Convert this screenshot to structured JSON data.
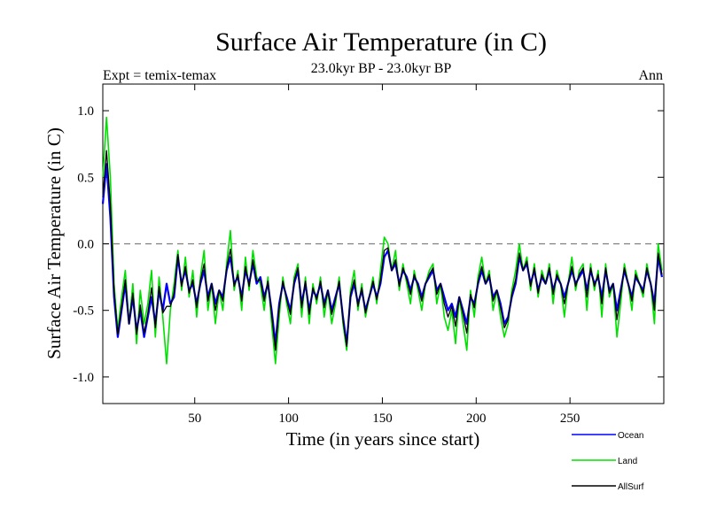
{
  "chart_data": {
    "type": "line",
    "title": "Surface Air Temperature (in C)",
    "subtitle": "23.0kyr BP - 23.0kyr BP",
    "left_note": "Expt = temix-temax",
    "right_note": "Ann",
    "xlabel": "Time (in years since start)",
    "ylabel": "Surface Air Temperature (in C)",
    "xlim": [
      1,
      300
    ],
    "ylim": [
      -1.2,
      1.2
    ],
    "x_ticks": [
      50,
      100,
      150,
      200,
      250
    ],
    "x_tick_labels": [
      "50",
      "100",
      "150",
      "200",
      "250"
    ],
    "y_ticks": [
      -1.0,
      -0.5,
      0.0,
      0.5,
      1.0
    ],
    "y_tick_labels": [
      "-1.0",
      "-0.5",
      "0.0",
      "0.5",
      "1.0"
    ],
    "reference_line": {
      "y": 0.0,
      "style": "dashed"
    },
    "x": [
      1,
      3,
      5,
      7,
      9,
      11,
      13,
      15,
      17,
      19,
      21,
      23,
      25,
      27,
      29,
      31,
      33,
      35,
      37,
      39,
      41,
      43,
      45,
      47,
      49,
      51,
      53,
      55,
      57,
      59,
      61,
      63,
      65,
      67,
      69,
      71,
      73,
      75,
      77,
      79,
      81,
      83,
      85,
      87,
      89,
      91,
      93,
      95,
      97,
      99,
      101,
      103,
      105,
      107,
      109,
      111,
      113,
      115,
      117,
      119,
      121,
      123,
      125,
      127,
      129,
      131,
      133,
      135,
      137,
      139,
      141,
      143,
      145,
      147,
      149,
      151,
      153,
      155,
      157,
      159,
      161,
      163,
      165,
      167,
      169,
      171,
      173,
      175,
      177,
      179,
      181,
      183,
      185,
      187,
      189,
      191,
      193,
      195,
      197,
      199,
      201,
      203,
      205,
      207,
      209,
      211,
      213,
      215,
      217,
      219,
      221,
      223,
      225,
      227,
      229,
      231,
      233,
      235,
      237,
      239,
      241,
      243,
      245,
      247,
      249,
      251,
      253,
      255,
      257,
      259,
      261,
      263,
      265,
      267,
      269,
      271,
      273,
      275,
      277,
      279,
      281,
      283,
      285,
      287,
      289,
      291,
      293,
      295,
      297,
      299
    ],
    "series": [
      {
        "name": "Ocean",
        "color": "#0000ff",
        "values": [
          0.3,
          0.6,
          0.2,
          -0.4,
          -0.7,
          -0.5,
          -0.3,
          -0.6,
          -0.4,
          -0.65,
          -0.5,
          -0.7,
          -0.55,
          -0.4,
          -0.6,
          -0.35,
          -0.5,
          -0.3,
          -0.45,
          -0.4,
          -0.1,
          -0.3,
          -0.2,
          -0.35,
          -0.3,
          -0.45,
          -0.3,
          -0.2,
          -0.4,
          -0.3,
          -0.45,
          -0.35,
          -0.4,
          -0.2,
          -0.1,
          -0.3,
          -0.25,
          -0.4,
          -0.2,
          -0.3,
          -0.15,
          -0.3,
          -0.25,
          -0.4,
          -0.3,
          -0.5,
          -0.75,
          -0.45,
          -0.3,
          -0.4,
          -0.5,
          -0.3,
          -0.2,
          -0.45,
          -0.3,
          -0.5,
          -0.35,
          -0.4,
          -0.3,
          -0.45,
          -0.35,
          -0.5,
          -0.4,
          -0.3,
          -0.55,
          -0.75,
          -0.4,
          -0.3,
          -0.45,
          -0.35,
          -0.5,
          -0.4,
          -0.3,
          -0.4,
          -0.3,
          -0.1,
          -0.05,
          -0.2,
          -0.15,
          -0.3,
          -0.2,
          -0.25,
          -0.35,
          -0.25,
          -0.3,
          -0.4,
          -0.3,
          -0.25,
          -0.2,
          -0.35,
          -0.3,
          -0.4,
          -0.5,
          -0.45,
          -0.55,
          -0.4,
          -0.5,
          -0.6,
          -0.4,
          -0.45,
          -0.3,
          -0.2,
          -0.3,
          -0.25,
          -0.4,
          -0.35,
          -0.45,
          -0.6,
          -0.55,
          -0.4,
          -0.3,
          -0.1,
          -0.2,
          -0.15,
          -0.3,
          -0.2,
          -0.35,
          -0.25,
          -0.3,
          -0.2,
          -0.35,
          -0.25,
          -0.3,
          -0.4,
          -0.3,
          -0.2,
          -0.3,
          -0.25,
          -0.2,
          -0.35,
          -0.2,
          -0.3,
          -0.25,
          -0.4,
          -0.2,
          -0.35,
          -0.3,
          -0.5,
          -0.35,
          -0.2,
          -0.3,
          -0.4,
          -0.25,
          -0.3,
          -0.35,
          -0.2,
          -0.3,
          -0.45,
          -0.1,
          -0.25
        ]
      },
      {
        "name": "Land",
        "color": "#00e000",
        "values": [
          0.5,
          0.95,
          0.5,
          -0.3,
          -0.65,
          -0.4,
          -0.2,
          -0.6,
          -0.3,
          -0.75,
          -0.35,
          -0.6,
          -0.45,
          -0.2,
          -0.7,
          -0.25,
          -0.55,
          -0.9,
          -0.5,
          -0.3,
          -0.05,
          -0.35,
          -0.1,
          -0.4,
          -0.2,
          -0.55,
          -0.25,
          -0.05,
          -0.5,
          -0.3,
          -0.6,
          -0.35,
          -0.5,
          -0.15,
          0.1,
          -0.35,
          -0.2,
          -0.5,
          -0.1,
          -0.35,
          -0.05,
          -0.25,
          -0.3,
          -0.5,
          -0.25,
          -0.6,
          -0.9,
          -0.55,
          -0.25,
          -0.45,
          -0.6,
          -0.25,
          -0.15,
          -0.55,
          -0.25,
          -0.6,
          -0.3,
          -0.45,
          -0.25,
          -0.55,
          -0.35,
          -0.6,
          -0.45,
          -0.25,
          -0.6,
          -0.8,
          -0.35,
          -0.2,
          -0.5,
          -0.3,
          -0.55,
          -0.4,
          -0.25,
          -0.45,
          -0.2,
          0.05,
          0.0,
          -0.2,
          -0.05,
          -0.35,
          -0.15,
          -0.3,
          -0.45,
          -0.2,
          -0.35,
          -0.5,
          -0.3,
          -0.2,
          -0.15,
          -0.45,
          -0.3,
          -0.55,
          -0.65,
          -0.5,
          -0.75,
          -0.4,
          -0.6,
          -0.8,
          -0.35,
          -0.55,
          -0.25,
          -0.1,
          -0.3,
          -0.2,
          -0.5,
          -0.35,
          -0.55,
          -0.7,
          -0.6,
          -0.35,
          -0.2,
          0.0,
          -0.2,
          -0.1,
          -0.35,
          -0.15,
          -0.4,
          -0.2,
          -0.3,
          -0.15,
          -0.45,
          -0.2,
          -0.3,
          -0.55,
          -0.3,
          -0.1,
          -0.35,
          -0.2,
          -0.15,
          -0.5,
          -0.15,
          -0.35,
          -0.2,
          -0.55,
          -0.15,
          -0.4,
          -0.3,
          -0.7,
          -0.45,
          -0.15,
          -0.3,
          -0.5,
          -0.2,
          -0.3,
          -0.4,
          -0.15,
          -0.3,
          -0.6,
          0.0,
          -0.2
        ]
      },
      {
        "name": "AllSurf",
        "color": "#000000",
        "values": [
          0.35,
          0.7,
          0.3,
          -0.35,
          -0.68,
          -0.47,
          -0.27,
          -0.6,
          -0.37,
          -0.68,
          -0.46,
          -0.67,
          -0.52,
          -0.33,
          -0.63,
          -0.32,
          -0.52,
          -0.47,
          -0.47,
          -0.37,
          -0.08,
          -0.32,
          -0.17,
          -0.37,
          -0.27,
          -0.48,
          -0.28,
          -0.15,
          -0.43,
          -0.3,
          -0.5,
          -0.35,
          -0.43,
          -0.18,
          -0.04,
          -0.32,
          -0.23,
          -0.43,
          -0.17,
          -0.32,
          -0.12,
          -0.28,
          -0.27,
          -0.43,
          -0.28,
          -0.53,
          -0.8,
          -0.48,
          -0.28,
          -0.42,
          -0.53,
          -0.28,
          -0.18,
          -0.48,
          -0.28,
          -0.53,
          -0.33,
          -0.42,
          -0.28,
          -0.48,
          -0.35,
          -0.53,
          -0.42,
          -0.28,
          -0.57,
          -0.77,
          -0.38,
          -0.27,
          -0.47,
          -0.33,
          -0.52,
          -0.4,
          -0.28,
          -0.42,
          -0.27,
          -0.05,
          -0.03,
          -0.2,
          -0.12,
          -0.32,
          -0.18,
          -0.27,
          -0.38,
          -0.23,
          -0.32,
          -0.43,
          -0.3,
          -0.23,
          -0.18,
          -0.38,
          -0.3,
          -0.45,
          -0.55,
          -0.47,
          -0.62,
          -0.4,
          -0.53,
          -0.67,
          -0.38,
          -0.48,
          -0.28,
          -0.17,
          -0.3,
          -0.23,
          -0.43,
          -0.35,
          -0.48,
          -0.63,
          -0.57,
          -0.38,
          -0.27,
          -0.07,
          -0.2,
          -0.13,
          -0.32,
          -0.18,
          -0.37,
          -0.23,
          -0.3,
          -0.18,
          -0.38,
          -0.23,
          -0.3,
          -0.45,
          -0.3,
          -0.17,
          -0.32,
          -0.23,
          -0.18,
          -0.4,
          -0.18,
          -0.32,
          -0.23,
          -0.45,
          -0.18,
          -0.37,
          -0.3,
          -0.57,
          -0.38,
          -0.18,
          -0.3,
          -0.43,
          -0.23,
          -0.3,
          -0.37,
          -0.18,
          -0.3,
          -0.5,
          -0.07,
          -0.23
        ]
      }
    ],
    "legend": [
      {
        "name": "Ocean",
        "color": "#0000ff"
      },
      {
        "name": "Land",
        "color": "#00e000"
      },
      {
        "name": "AllSurf",
        "color": "#000000"
      }
    ],
    "legend_position": "bottom-right"
  }
}
